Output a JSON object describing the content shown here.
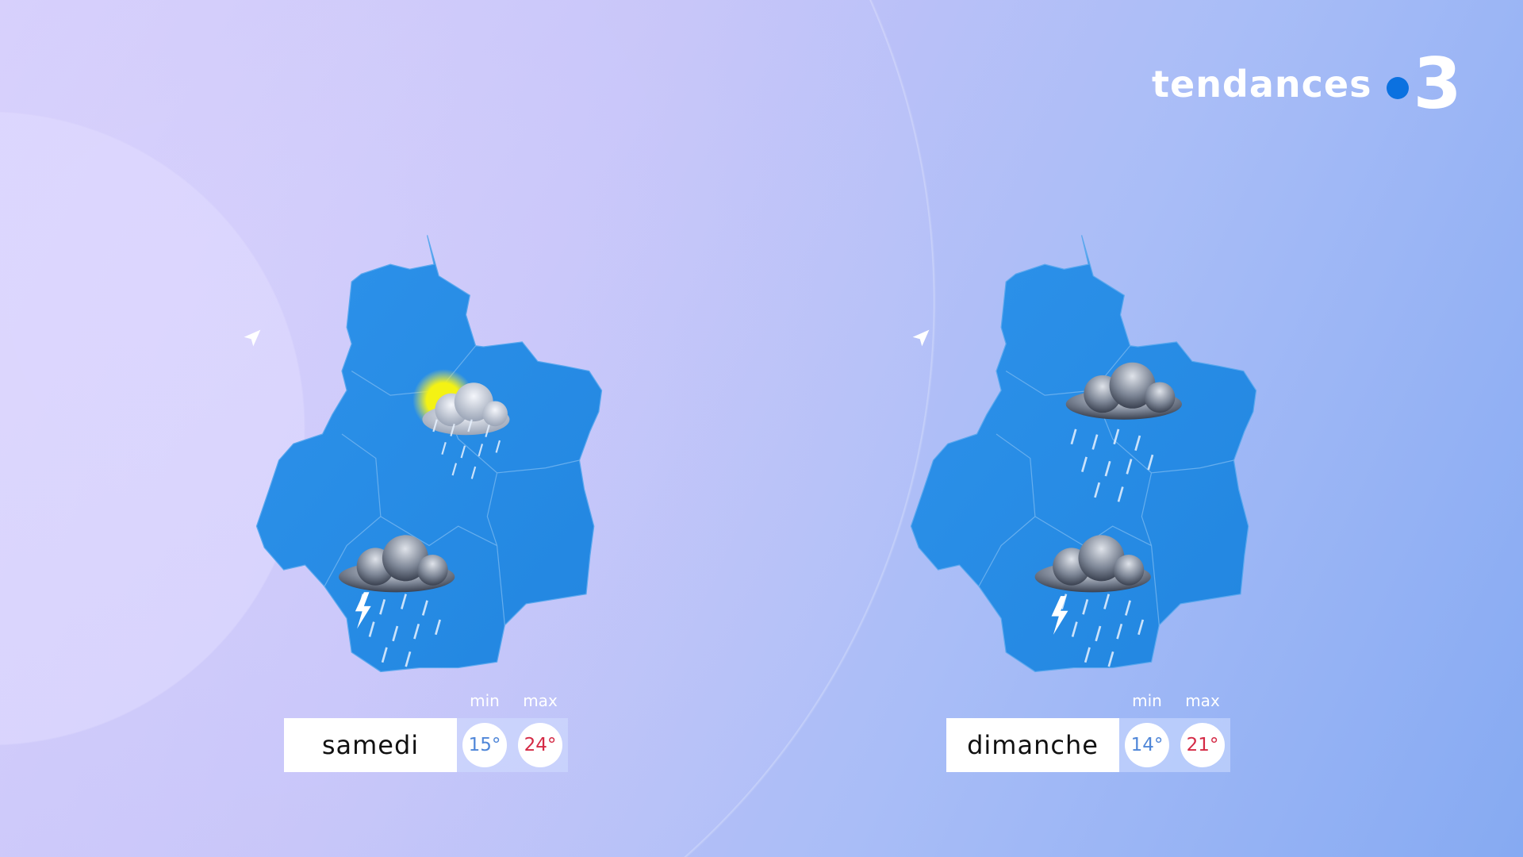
{
  "brand": {
    "text": "tendances",
    "channel": "3",
    "dot_color": "#0b71e0"
  },
  "colors": {
    "map": "#2a8ee6",
    "min": "#4f86d8",
    "max": "#d42a45"
  },
  "days": [
    {
      "name": "samedi",
      "min_label": "min",
      "max_label": "max",
      "min": "15°",
      "max": "24°",
      "icons": [
        "sun-cloud-rain-icon",
        "thunderstorm-icon"
      ]
    },
    {
      "name": "dimanche",
      "min_label": "min",
      "max_label": "max",
      "min": "14°",
      "max": "21°",
      "icons": [
        "cloud-rain-icon",
        "thunderstorm-icon"
      ]
    }
  ]
}
